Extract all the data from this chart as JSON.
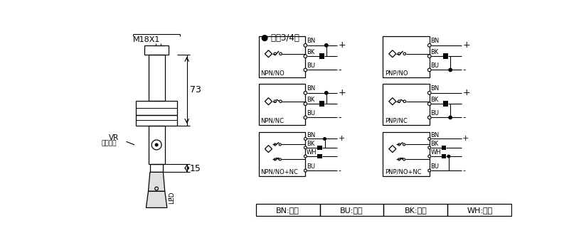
{
  "bg_color": "#ffffff",
  "dc_label": "● 直涁3/4线",
  "dim_73": "73",
  "dim_15": "15",
  "dim_m18x1": "M18X1",
  "vr_label": "VR",
  "vr_sublabel": "距离调节",
  "led_label": "LED",
  "color_labels": [
    "BN:棕色",
    "BU:兰色",
    "BK:黑色",
    "WH:白色"
  ],
  "circuits": [
    {
      "label": "NPN/NO",
      "type": "NPN",
      "mode": "NO"
    },
    {
      "label": "NPN/NC",
      "type": "NPN",
      "mode": "NC"
    },
    {
      "label": "NPN/NO+NC",
      "type": "NPN",
      "mode": "NONC"
    },
    {
      "label": "PNP/NO",
      "type": "PNP",
      "mode": "NO"
    },
    {
      "label": "PNP/NC",
      "type": "PNP",
      "mode": "NC"
    },
    {
      "label": "PNP/NO+NC",
      "type": "PNP",
      "mode": "NONC"
    }
  ]
}
